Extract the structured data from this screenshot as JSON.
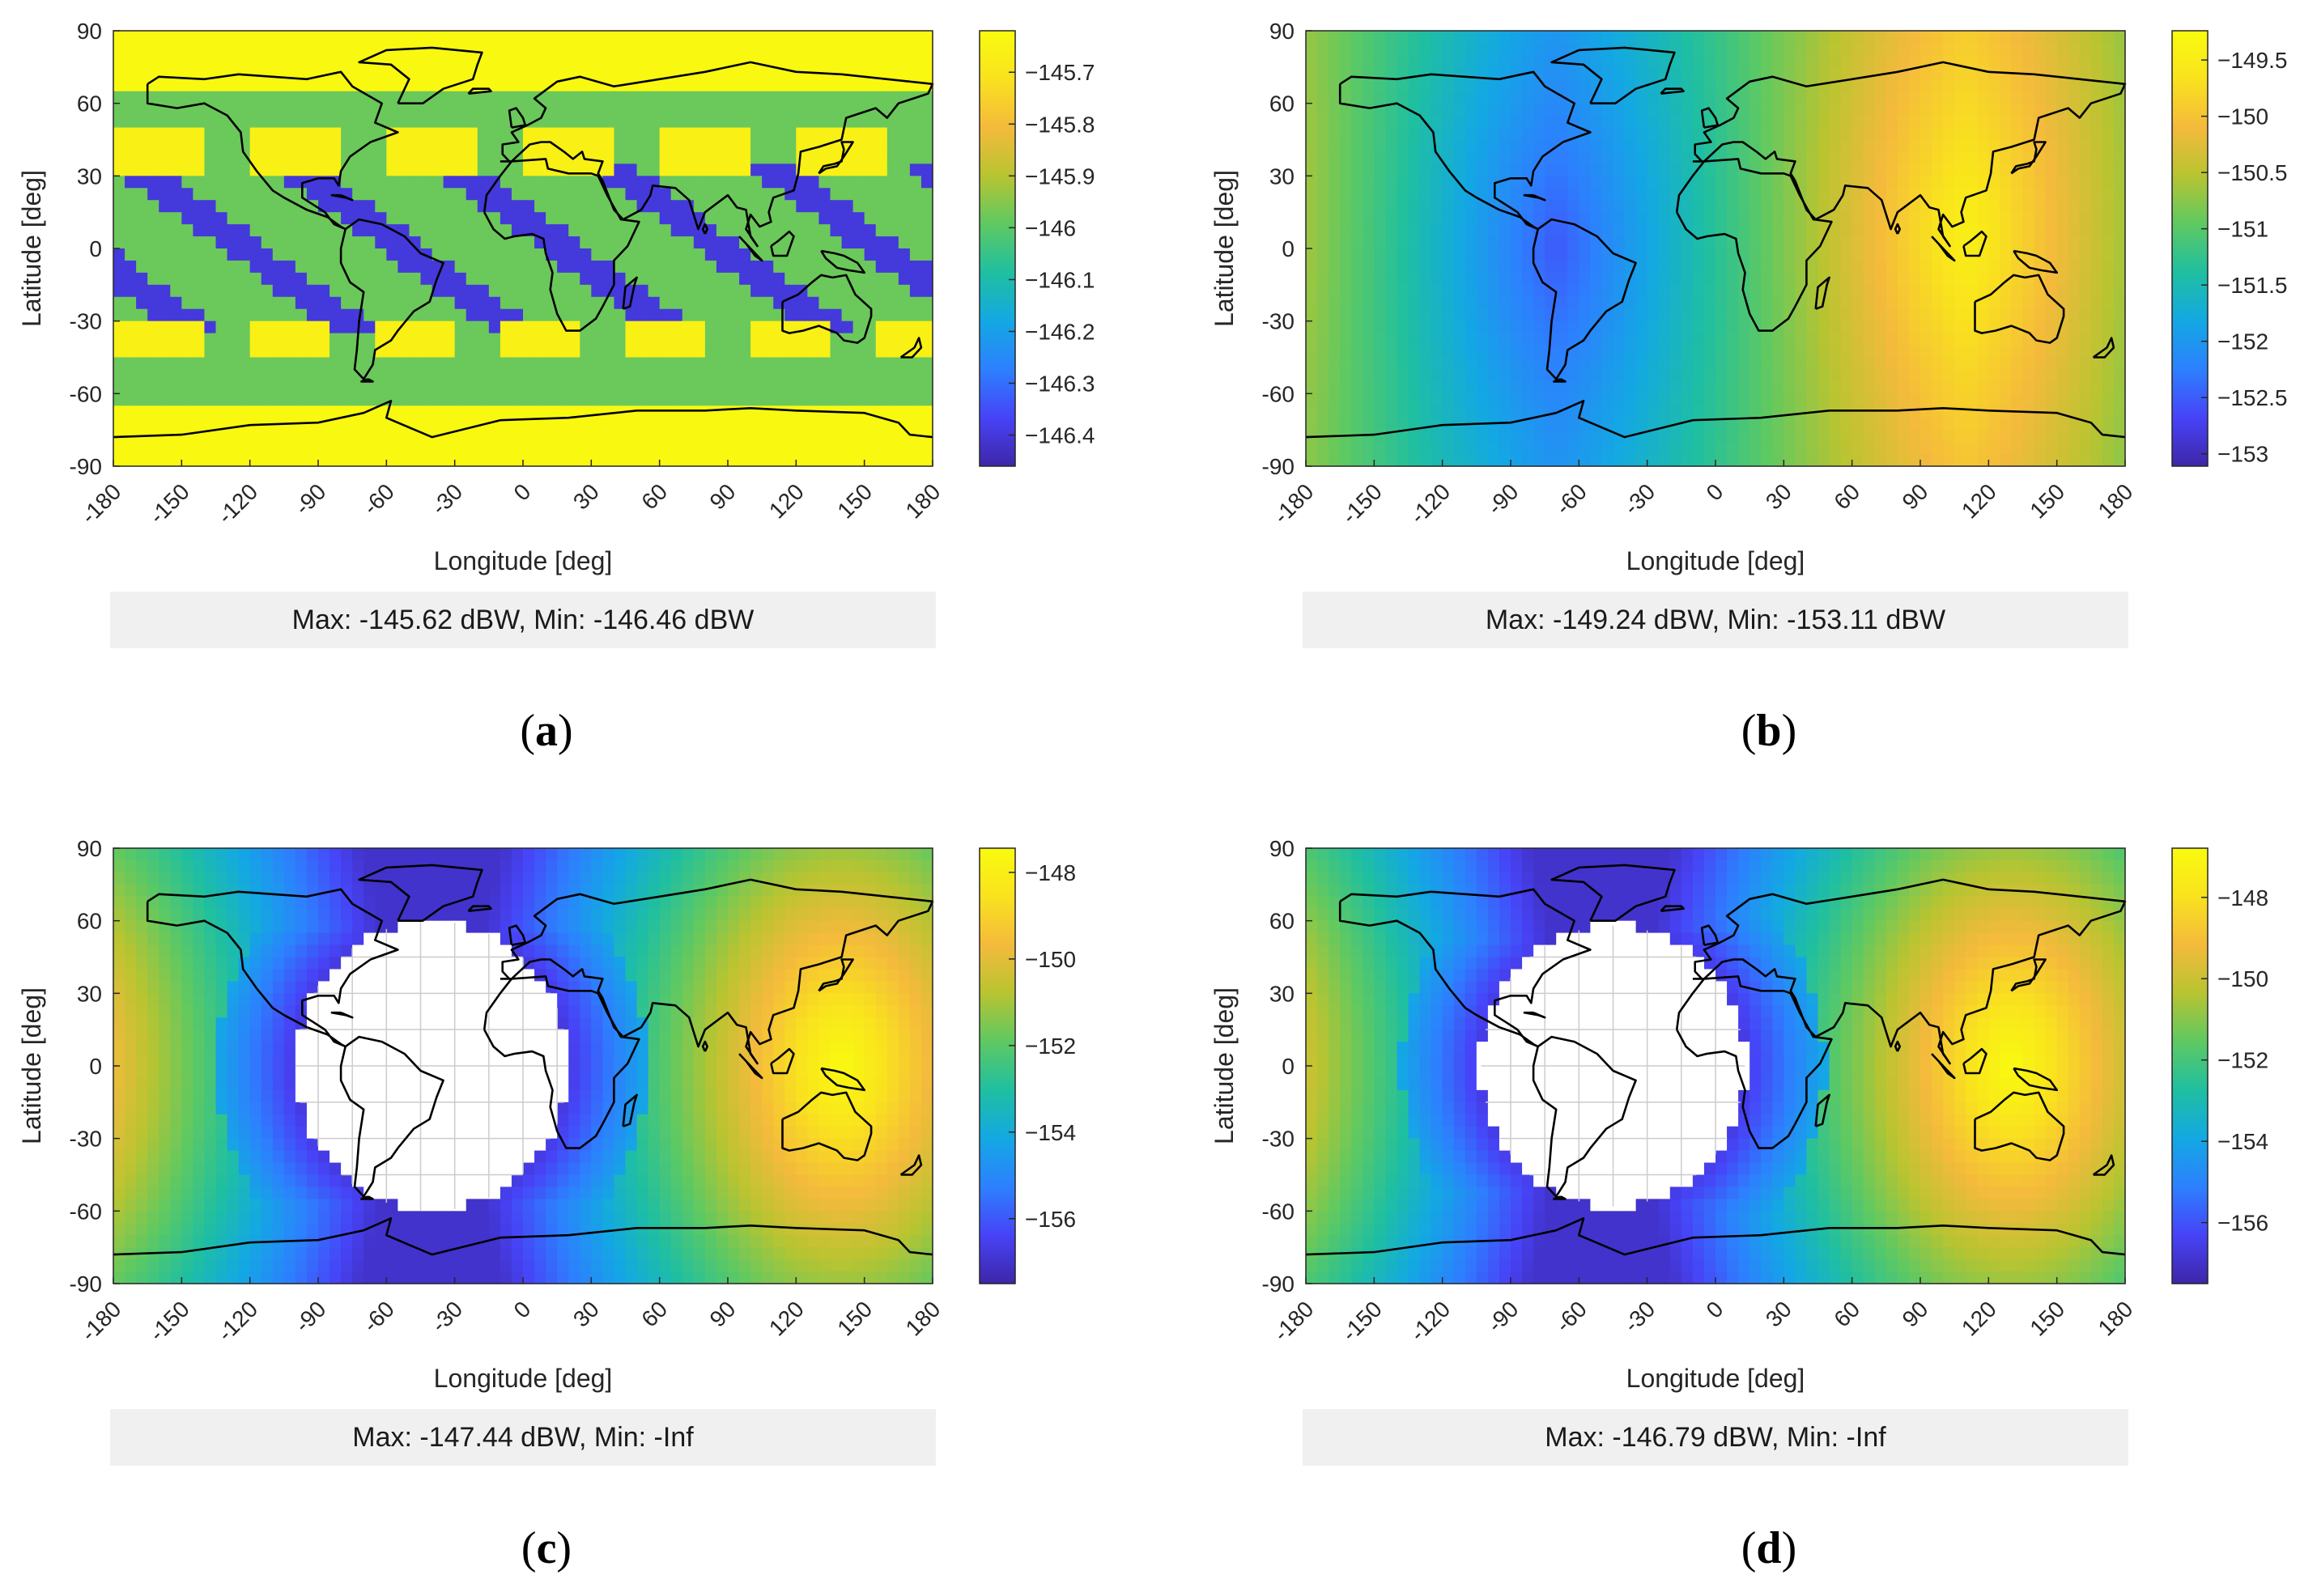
{
  "colors": {
    "cmap": [
      "#3e26a8",
      "#4743f7",
      "#2d80fe",
      "#13a8e3",
      "#1fbfa1",
      "#5ec962",
      "#b8c431",
      "#f4ba3c",
      "#f9e21e",
      "#f9fb0e"
    ],
    "land_outline": "#000000",
    "no_data": "#ffffff",
    "caption_box": "#f0f0f0",
    "grid": "#cccccc"
  },
  "chart_data": [
    {
      "type": "heatmap",
      "panel": "(a)",
      "xlabel": "Longitude [deg]",
      "ylabel": "Latitude [deg]",
      "xlim": [
        -180,
        180
      ],
      "ylim": [
        -90,
        90
      ],
      "xticks": [
        -180,
        -150,
        -120,
        -90,
        -60,
        -30,
        0,
        30,
        60,
        90,
        120,
        150,
        180
      ],
      "yticks": [
        -90,
        -60,
        -30,
        0,
        30,
        60,
        90
      ],
      "clim": [
        -146.46,
        -145.62
      ],
      "colorbar_ticks": [
        -146.4,
        -146.3,
        -146.2,
        -146.1,
        -146,
        -145.9,
        -145.8,
        -145.7
      ],
      "pattern": "latitude bands",
      "caption": "Max: -145.62 dBW, Min: -146.46 dBW"
    },
    {
      "type": "heatmap",
      "panel": "(b)",
      "xlabel": "Longitude [deg]",
      "ylabel": "Latitude [deg]",
      "xlim": [
        -180,
        180
      ],
      "ylim": [
        -90,
        90
      ],
      "xticks": [
        -180,
        -150,
        -120,
        -90,
        -60,
        -30,
        0,
        30,
        60,
        90,
        120,
        150,
        180
      ],
      "yticks": [
        -90,
        -60,
        -30,
        0,
        30,
        60,
        90
      ],
      "clim": [
        -153.11,
        -149.24
      ],
      "colorbar_ticks": [
        -153,
        -152.5,
        -152,
        -151.5,
        -151,
        -150.5,
        -150,
        -149.5
      ],
      "pattern": "smooth",
      "max_center": [
        110,
        5
      ],
      "min_center": [
        -70,
        0
      ],
      "caption": "Max: -149.24 dBW, Min: -153.11 dBW"
    },
    {
      "type": "heatmap",
      "panel": "(c)",
      "xlabel": "Longitude [deg]",
      "ylabel": "Latitude [deg]",
      "xlim": [
        -180,
        180
      ],
      "ylim": [
        -90,
        90
      ],
      "xticks": [
        -180,
        -150,
        -120,
        -90,
        -60,
        -30,
        0,
        30,
        60,
        90,
        120,
        150,
        180
      ],
      "yticks": [
        -90,
        -60,
        -30,
        0,
        30,
        60,
        90
      ],
      "clim": [
        -157.5,
        -147.44
      ],
      "colorbar_ticks": [
        -156,
        -154,
        -152,
        -150,
        -148
      ],
      "pattern": "hole",
      "max_center": [
        140,
        0
      ],
      "hole_center": [
        -40,
        0
      ],
      "hole_radius_deg": 60,
      "caption": "Max: -147.44 dBW, Min: -Inf"
    },
    {
      "type": "heatmap",
      "panel": "(d)",
      "xlabel": "Longitude [deg]",
      "ylabel": "Latitude [deg]",
      "xlim": [
        -180,
        180
      ],
      "ylim": [
        -90,
        90
      ],
      "xticks": [
        -180,
        -150,
        -120,
        -90,
        -60,
        -30,
        0,
        30,
        60,
        90,
        120,
        150,
        180
      ],
      "yticks": [
        -90,
        -60,
        -30,
        0,
        30,
        60,
        90
      ],
      "clim": [
        -157.5,
        -146.79
      ],
      "colorbar_ticks": [
        -156,
        -154,
        -152,
        -150,
        -148
      ],
      "pattern": "hole",
      "max_center": [
        130,
        0
      ],
      "hole_center": [
        -45,
        0
      ],
      "hole_radius_deg": 58,
      "caption": "Max: -146.79 dBW, Min: -Inf"
    }
  ]
}
